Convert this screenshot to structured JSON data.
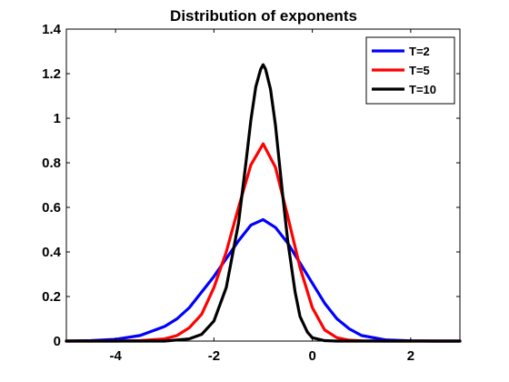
{
  "chart_data": {
    "type": "line",
    "title": "Distribution of exponents",
    "xlabel": "",
    "ylabel": "",
    "xlim": [
      -5,
      3
    ],
    "ylim": [
      0,
      1.4
    ],
    "xticks": [
      -4,
      -2,
      0,
      2
    ],
    "xtick_labels": [
      "-4",
      "-2",
      "0",
      "2"
    ],
    "yticks": [
      0,
      0.2,
      0.4,
      0.6,
      0.8,
      1,
      1.2,
      1.4
    ],
    "ytick_labels": [
      "0",
      "0.2",
      "0.4",
      "0.6",
      "0.8",
      "1",
      "1.2",
      "1.4"
    ],
    "grid": false,
    "legend_position": "top-right",
    "series": [
      {
        "name": "T=2",
        "color": "#0000ff",
        "x": [
          -5,
          -4.5,
          -4,
          -3.5,
          -3,
          -2.75,
          -2.5,
          -2.25,
          -2,
          -1.75,
          -1.5,
          -1.25,
          -1,
          -0.75,
          -0.5,
          -0.25,
          0,
          0.25,
          0.5,
          0.75,
          1,
          1.5,
          2,
          2.5,
          3
        ],
        "y": [
          0.0,
          0.002,
          0.008,
          0.025,
          0.066,
          0.1,
          0.15,
          0.22,
          0.29,
          0.37,
          0.45,
          0.52,
          0.545,
          0.51,
          0.44,
          0.35,
          0.26,
          0.17,
          0.1,
          0.055,
          0.025,
          0.005,
          0.001,
          0.0,
          0.0
        ]
      },
      {
        "name": "T=5",
        "color": "#ff0000",
        "x": [
          -5,
          -4,
          -3.5,
          -3,
          -2.75,
          -2.5,
          -2.25,
          -2,
          -1.75,
          -1.5,
          -1.25,
          -1,
          -0.75,
          -0.5,
          -0.25,
          0,
          0.25,
          0.5,
          0.75,
          1,
          1.5,
          2,
          3
        ],
        "y": [
          0.0,
          0.0,
          0.002,
          0.01,
          0.025,
          0.06,
          0.12,
          0.24,
          0.4,
          0.6,
          0.79,
          0.885,
          0.78,
          0.56,
          0.33,
          0.15,
          0.05,
          0.015,
          0.004,
          0.001,
          0.0,
          0.0,
          0.0
        ]
      },
      {
        "name": "T=10",
        "color": "#000000",
        "x": [
          -5,
          -3,
          -2.5,
          -2.25,
          -2,
          -1.75,
          -1.5,
          -1.35,
          -1.25,
          -1.15,
          -1.05,
          -1,
          -0.95,
          -0.85,
          -0.75,
          -0.6,
          -0.5,
          -0.35,
          -0.25,
          -0.1,
          0,
          0.25,
          0.5,
          1,
          3
        ],
        "y": [
          0.0,
          0.0,
          0.01,
          0.03,
          0.09,
          0.24,
          0.53,
          0.8,
          0.99,
          1.14,
          1.22,
          1.24,
          1.22,
          1.13,
          0.97,
          0.65,
          0.45,
          0.22,
          0.11,
          0.04,
          0.015,
          0.002,
          0.0,
          0.0,
          0.0
        ]
      }
    ]
  }
}
